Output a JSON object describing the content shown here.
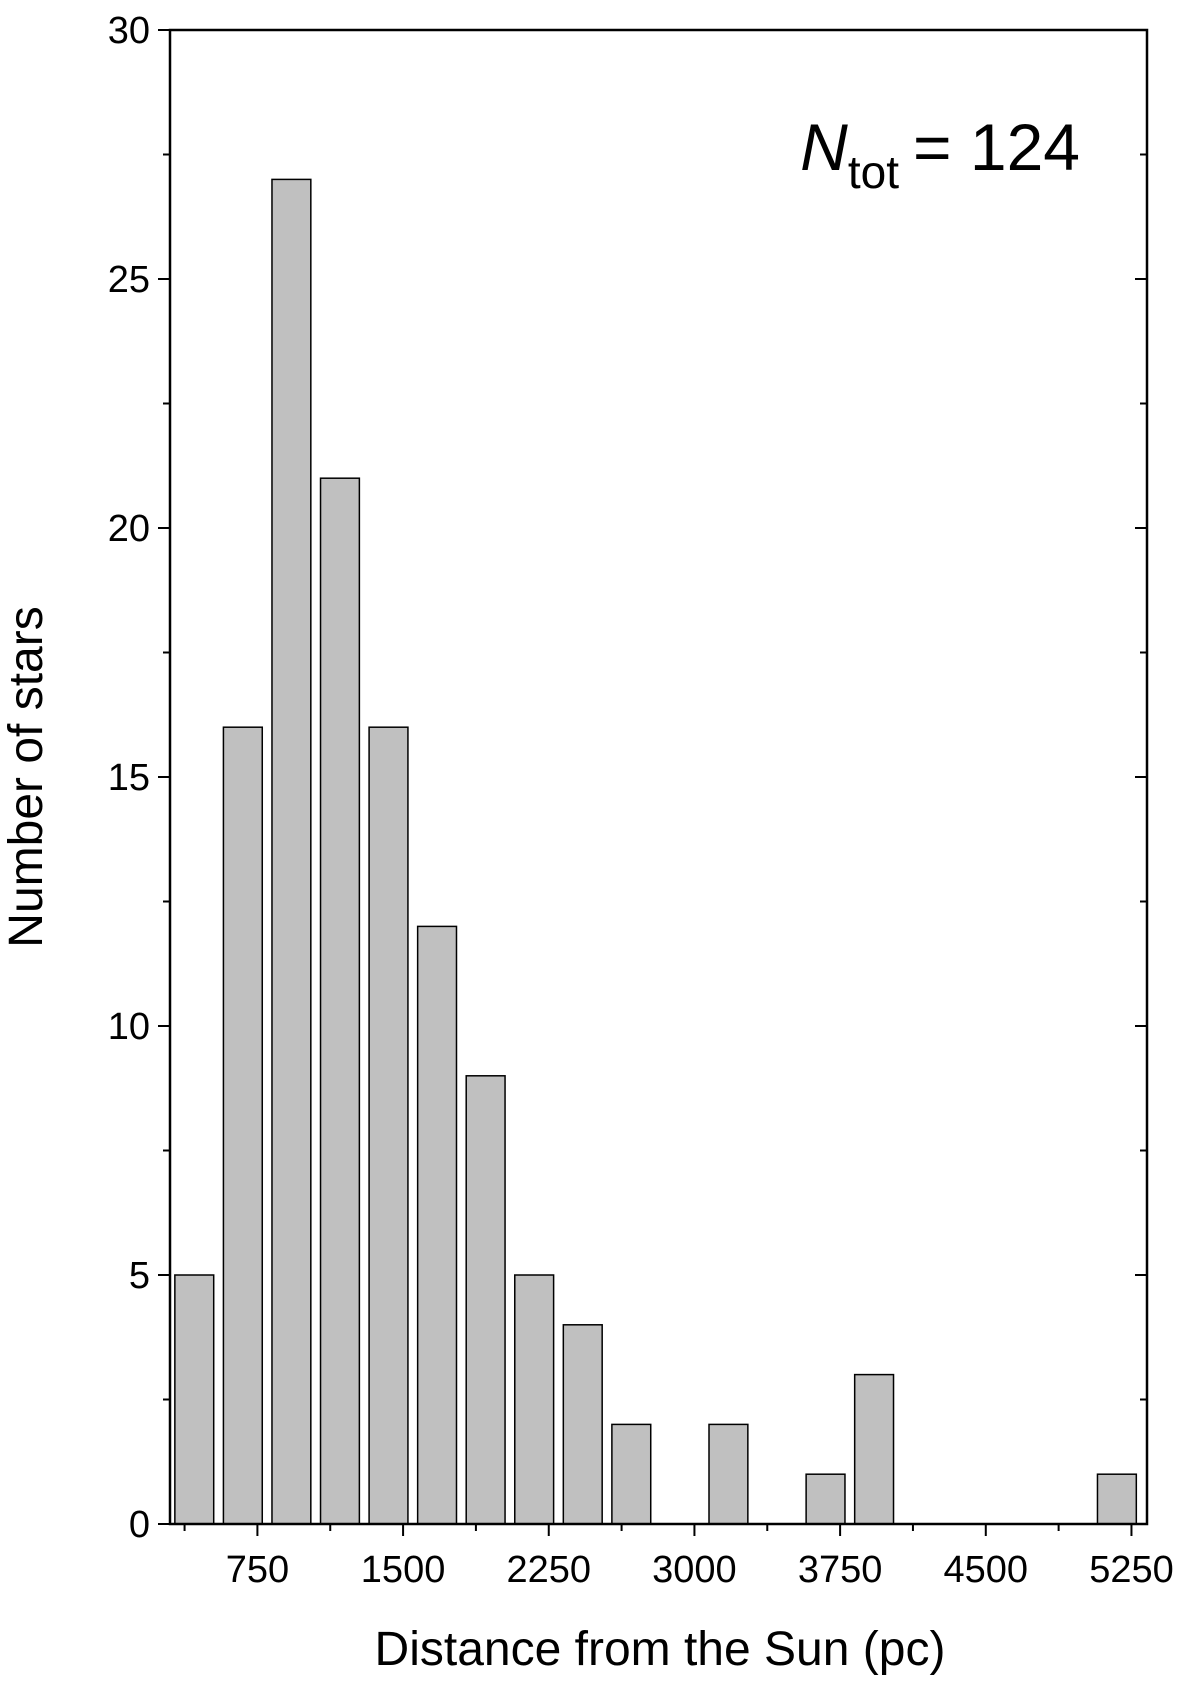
{
  "chart_data": {
    "type": "histogram",
    "x_label": "Distance from the Sun (pc)",
    "y_label": "Number of stars",
    "bins": [
      300,
      550,
      800,
      1050,
      1300,
      1550,
      1800,
      2050,
      2300,
      2550,
      2800,
      3050,
      3300,
      3550,
      3800,
      4050,
      4300,
      4550,
      4800,
      5050,
      5300
    ],
    "values": [
      5,
      16,
      27,
      21,
      16,
      12,
      9,
      5,
      4,
      2,
      0,
      2,
      0,
      1,
      3,
      0,
      0,
      0,
      0,
      1
    ],
    "color": "#c0c0c0",
    "xlim": [
      300,
      5330
    ],
    "ylim": [
      0,
      30
    ],
    "xticks": [
      750,
      1500,
      2250,
      3000,
      3750,
      4500,
      5250
    ],
    "yticks": [
      0,
      5,
      10,
      15,
      20,
      25,
      30
    ],
    "annotation": {
      "symbol": "N",
      "subscript": "tot",
      "text": "= 124"
    }
  }
}
